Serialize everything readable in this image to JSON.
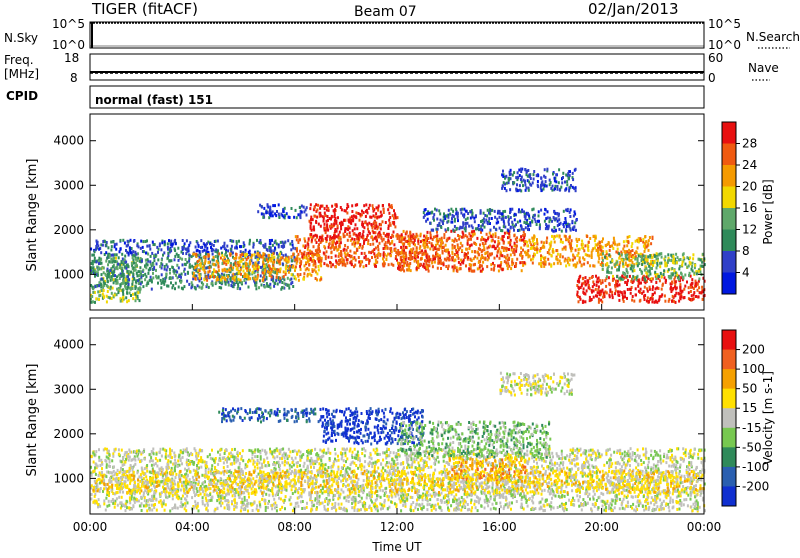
{
  "header": {
    "station": "TIGER (fitACF)",
    "beam": "Beam 07",
    "date": "02/Jan/2013"
  },
  "strips": {
    "nsky_label": "N.Sky",
    "nsky_ticks": [
      "10^5",
      "10^0"
    ],
    "nsearch_label": "N.Search",
    "nsearch_ticks": [
      "10^5",
      "10^0"
    ],
    "freq_label": "Freq.",
    "freq_unit": "[MHz]",
    "freq_ticks": [
      "18",
      "8"
    ],
    "nave_label": "Nave",
    "nave_ticks": [
      "60",
      "0"
    ],
    "cpid_label": "CPID",
    "cpid_value": "normal (fast) 151"
  },
  "chart_data": [
    {
      "type": "heatmap",
      "name": "power-panel",
      "ylabel": "Slant Range [km]",
      "xlabel": "",
      "ylim": [
        200,
        4600
      ],
      "yticks": [
        1000,
        2000,
        3000,
        4000
      ],
      "colorbar": {
        "label": "Power [dB]",
        "ticks": [
          "4",
          "8",
          "12",
          "16",
          "20",
          "24",
          "28"
        ],
        "colors": [
          "#0018e0",
          "#3040c8",
          "#2f8a5a",
          "#5fa86a",
          "#f2d800",
          "#f59a00",
          "#f05a10",
          "#e81010"
        ]
      },
      "regions": [
        {
          "t0": 0.0,
          "t1": 2.0,
          "r0": 400,
          "r1": 1400,
          "level": 3
        },
        {
          "t0": 0.0,
          "t1": 8.0,
          "r0": 700,
          "r1": 1500,
          "level": 2
        },
        {
          "t0": 0.0,
          "t1": 8.0,
          "r0": 1500,
          "r1": 1800,
          "level": 1
        },
        {
          "t0": 4.0,
          "t1": 9.0,
          "r0": 900,
          "r1": 1500,
          "level": 5
        },
        {
          "t0": 8.0,
          "t1": 14.0,
          "r0": 1200,
          "r1": 1900,
          "level": 6
        },
        {
          "t0": 8.5,
          "t1": 12.0,
          "r0": 1800,
          "r1": 2600,
          "level": 7
        },
        {
          "t0": 12.0,
          "t1": 17.0,
          "r0": 1100,
          "r1": 2000,
          "level": 6
        },
        {
          "t0": 13.0,
          "t1": 19.0,
          "r0": 2000,
          "r1": 2500,
          "level": 1
        },
        {
          "t0": 17.0,
          "t1": 22.0,
          "r0": 1200,
          "r1": 1900,
          "level": 5
        },
        {
          "t0": 19.0,
          "t1": 24.0,
          "r0": 400,
          "r1": 1000,
          "level": 7
        },
        {
          "t0": 20.0,
          "t1": 24.0,
          "r0": 900,
          "r1": 1500,
          "level": 3
        },
        {
          "t0": 16.0,
          "t1": 19.0,
          "r0": 2900,
          "r1": 3400,
          "level": 1
        },
        {
          "t0": 6.5,
          "t1": 8.5,
          "r0": 2300,
          "r1": 2600,
          "level": 1
        }
      ]
    },
    {
      "type": "heatmap",
      "name": "velocity-panel",
      "ylabel": "Slant Range [km]",
      "xlabel": "Time UT",
      "ylim": [
        200,
        4600
      ],
      "yticks": [
        1000,
        2000,
        3000,
        4000
      ],
      "xticks": [
        "00:00",
        "04:00",
        "08:00",
        "12:00",
        "16:00",
        "20:00",
        "00:00"
      ],
      "colorbar": {
        "label": "Velocity [m s-1]",
        "ticks": [
          "200",
          "100",
          "50",
          "15",
          "-15",
          "-50",
          "-100",
          "-200"
        ],
        "colors": [
          "#1030d0",
          "#2a5fb0",
          "#2f8a5a",
          "#77c850",
          "#c0c0bc",
          "#ffe000",
          "#f5a000",
          "#f06020",
          "#e81010"
        ]
      },
      "regions": [
        {
          "t0": 0.0,
          "t1": 24.0,
          "r0": 300,
          "r1": 1700,
          "level": 4
        },
        {
          "t0": 9.0,
          "t1": 13.0,
          "r0": 1800,
          "r1": 2600,
          "level": 0
        },
        {
          "t0": 12.0,
          "t1": 18.0,
          "r0": 1500,
          "r1": 2300,
          "level": 3
        },
        {
          "t0": 14.0,
          "t1": 17.0,
          "r0": 1000,
          "r1": 1500,
          "level": 6
        },
        {
          "t0": 16.0,
          "t1": 19.0,
          "r0": 2900,
          "r1": 3400,
          "level": 4
        },
        {
          "t0": 0.0,
          "t1": 24.0,
          "r0": 700,
          "r1": 1200,
          "level": 5
        },
        {
          "t0": 5.0,
          "t1": 9.0,
          "r0": 2300,
          "r1": 2600,
          "level": 1
        }
      ]
    }
  ]
}
